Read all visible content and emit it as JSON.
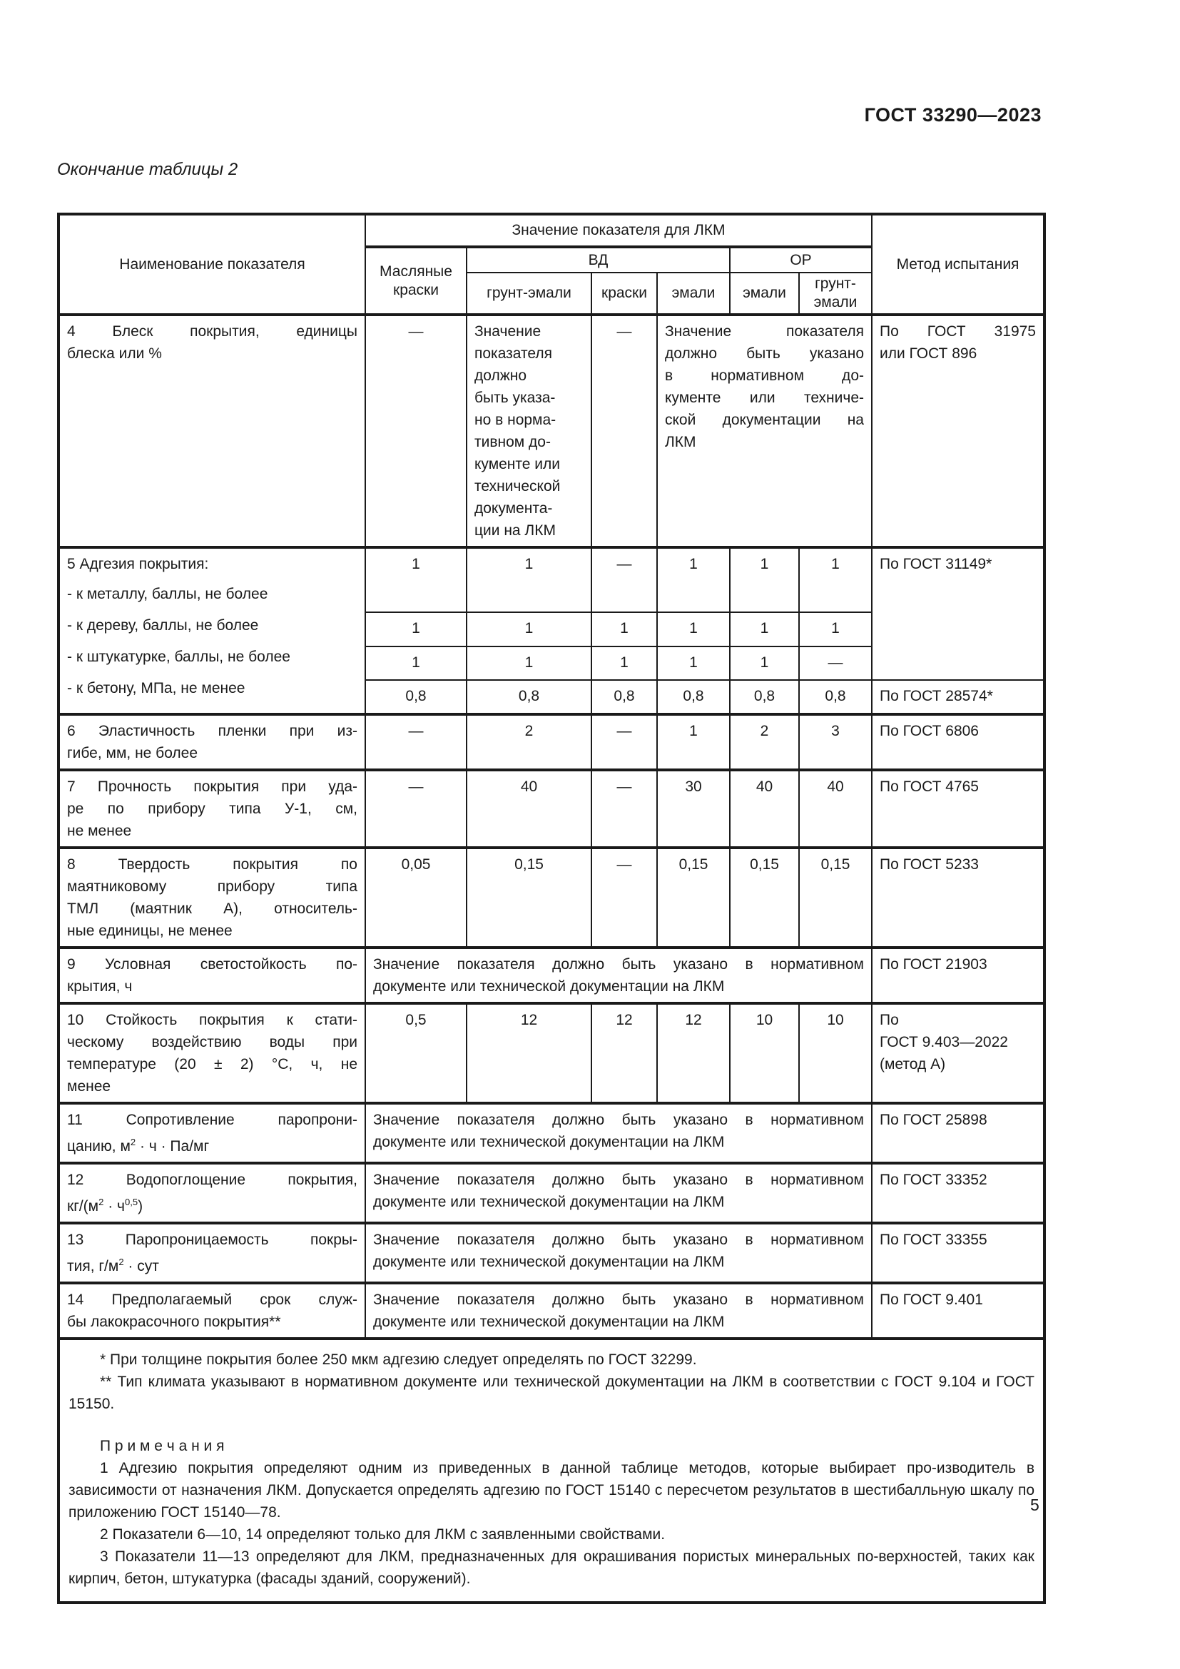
{
  "page": {
    "doc_code": "ГОСТ 33290—2023",
    "table_caption": "Окончание таблицы 2",
    "page_number": "5"
  },
  "table": {
    "header": {
      "name": "Наименование показателя",
      "value_group": "Значение показателя для ЛКМ",
      "method": "Метод испытания",
      "oil_paints": "Масляные краски",
      "vd": "ВД",
      "or": "ОР",
      "vd_sub": [
        "грунт-эмали",
        "краски",
        "эмали"
      ],
      "or_sub": [
        "эмали",
        "грунт-эмали"
      ]
    },
    "rows": {
      "r4": {
        "name": "4 Блеск покрытия, единицы\nблеска или %",
        "oil": "—",
        "grunt_vd": "Значение\nпоказателя\nдолжно\nбыть указа-\nно в норма-\nтивном до-\nкументе или\nтехнической\nдокумента-\nции на ЛКМ",
        "kraski": "—",
        "rest": "Значение показателя\nдолжно быть указано\nв нормативном до-\nкументе или техниче-\nской документации на\nЛКМ",
        "method": "По ГОСТ 31975\nили ГОСТ 896"
      },
      "r5": {
        "name_lines": [
          "5 Адгезия покрытия:",
          "- к металлу, баллы, не более",
          "- к дереву, баллы, не более",
          "- к штукатурке, баллы, не более",
          "- к бетону, МПа, не менее"
        ],
        "metal": [
          "1",
          "1",
          "—",
          "1",
          "1",
          "1"
        ],
        "wood": [
          "1",
          "1",
          "1",
          "1",
          "1",
          "1"
        ],
        "plaster": [
          "1",
          "1",
          "1",
          "1",
          "1",
          "—"
        ],
        "concrete": [
          "0,8",
          "0,8",
          "0,8",
          "0,8",
          "0,8",
          "0,8"
        ],
        "method_adhesion": "По ГОСТ 31149*",
        "method_concrete": "По ГОСТ 28574*"
      },
      "r6": {
        "name": "6 Эластичность пленки при из-\nгибе, мм, не более",
        "values": [
          "—",
          "2",
          "—",
          "1",
          "2",
          "3"
        ],
        "method": "По ГОСТ 6806"
      },
      "r7": {
        "name": "7 Прочность покрытия при уда-\nре по прибору типа У-1, см,\nне менее",
        "values": [
          "—",
          "40",
          "—",
          "30",
          "40",
          "40"
        ],
        "method": "По ГОСТ 4765"
      },
      "r8": {
        "name": "8 Твердость покрытия по\nмаятниковому прибору типа\nТМЛ (маятник А), относитель-\nные единицы, не менее",
        "values": [
          "0,05",
          "0,15",
          "—",
          "0,15",
          "0,15",
          "0,15"
        ],
        "method": "По ГОСТ 5233"
      },
      "r9": {
        "name": "9 Условная светостойкость по-\nкрытия, ч",
        "span": "Значение показателя должно быть указано в нормативном\nдокументе или технической документации на ЛКМ",
        "method": "По ГОСТ 21903"
      },
      "r10": {
        "name": "10 Стойкость покрытия к стати-\nческому воздействию воды при\nтемпературе (20 ± 2) °С, ч, не\nменее",
        "values": [
          "0,5",
          "12",
          "12",
          "12",
          "10",
          "10"
        ],
        "method": "По\nГОСТ 9.403—2022\n(метод А)"
      },
      "r11": {
        "name": "11 Сопротивление паропрони-\nцанию, м^{2} · ч · Па/мг",
        "span": "Значение показателя должно быть указано в нормативном\nдокументе или технической документации на ЛКМ",
        "method": "По ГОСТ 25898"
      },
      "r12": {
        "name": "12 Водопоглощение покрытия,\nкг/(м^{2} · ч^{0,5})",
        "span": "Значение показателя должно быть указано в нормативном\nдокументе или технической документации на ЛКМ",
        "method": "По ГОСТ 33352"
      },
      "r13": {
        "name": "13 Паропроницаемость покры-\nтия, г/м^{2} · сут",
        "span": "Значение показателя должно быть указано в нормативном\nдокументе или технической документации на ЛКМ",
        "method": "По ГОСТ 33355"
      },
      "r14": {
        "name": "14 Предполагаемый срок служ-\nбы лакокрасочного покрытия**",
        "span": "Значение показателя должно быть указано в нормативном\nдокументе или технической документации на ЛКМ",
        "method": "По ГОСТ 9.401"
      }
    }
  },
  "footnotes": {
    "fn1": "* При толщине покрытия более 250 мкм адгезию следует определять по ГОСТ 32299.",
    "fn2": "** Тип климата указывают в нормативном документе или технической документации на ЛКМ в соответствии с ГОСТ 9.104 и ГОСТ 15150.",
    "notes_title": "П р и м е ч а н и я",
    "note1": "1 Адгезию покрытия определяют одним из приведенных в данной таблице методов, которые выбирает про-изводитель в зависимости от назначения ЛКМ. Допускается определять адгезию по ГОСТ 15140 с пересчетом результатов в шестибалльную шкалу по приложению ГОСТ 15140—78.",
    "note2": "2 Показатели 6—10, 14 определяют только для ЛКМ с заявленными свойствами.",
    "note3": "3 Показатели 11—13 определяют для ЛКМ, предназначенных для окрашивания пористых минеральных по-верхностей, таких как кирпич, бетон, штукатурка (фасады зданий, сооружений)."
  }
}
